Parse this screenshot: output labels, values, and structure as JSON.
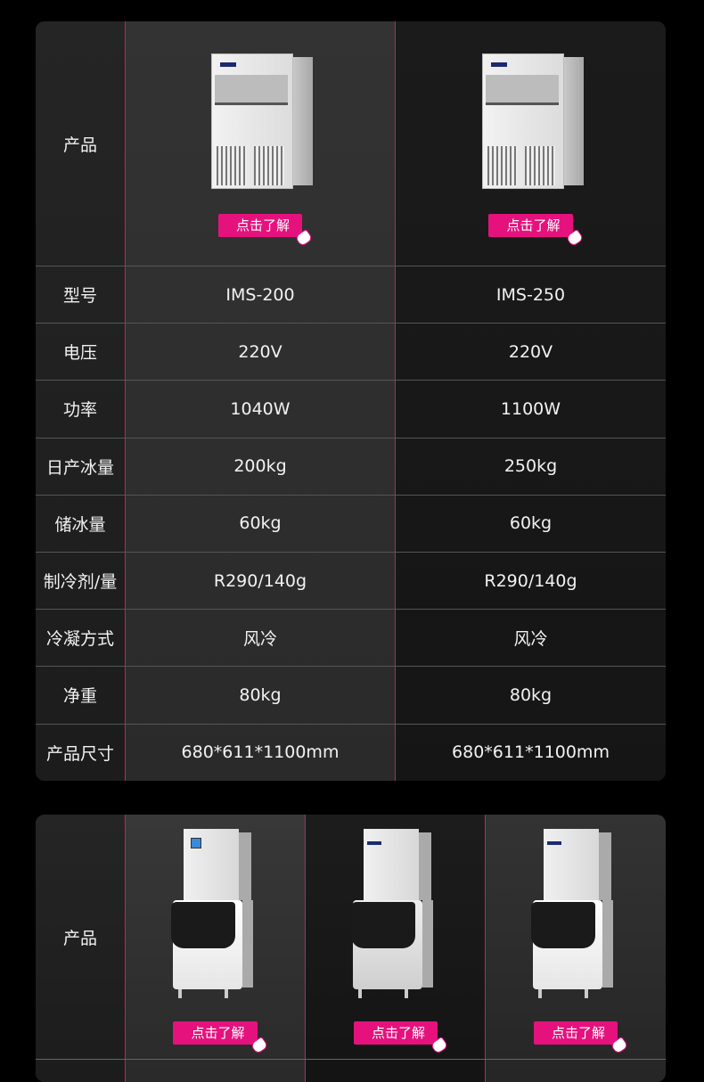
{
  "colors": {
    "accent": "#e5127d",
    "divider": "#c81c6f"
  },
  "table1": {
    "product_label": "产品",
    "button_label": "点击了解",
    "button_icon": "hand-pointer-icon",
    "rows": [
      {
        "label": "型号",
        "values": [
          "IMS-200",
          "IMS-250"
        ]
      },
      {
        "label": "电压",
        "values": [
          "220V",
          "220V"
        ]
      },
      {
        "label": "功率",
        "values": [
          "1040W",
          "1100W"
        ]
      },
      {
        "label": "日产冰量",
        "values": [
          "200kg",
          "250kg"
        ]
      },
      {
        "label": "储冰量",
        "values": [
          "60kg",
          "60kg"
        ]
      },
      {
        "label": "制冷剂/量",
        "values": [
          "R290/140g",
          "R290/140g"
        ]
      },
      {
        "label": "冷凝方式",
        "values": [
          "风冷",
          "风冷"
        ]
      },
      {
        "label": "净重",
        "values": [
          "80kg",
          "80kg"
        ]
      },
      {
        "label": "产品尺寸",
        "values": [
          "680*611*1100mm",
          "680*611*1100mm"
        ]
      }
    ]
  },
  "table2": {
    "product_label": "产品",
    "button_label": "点击了解"
  }
}
